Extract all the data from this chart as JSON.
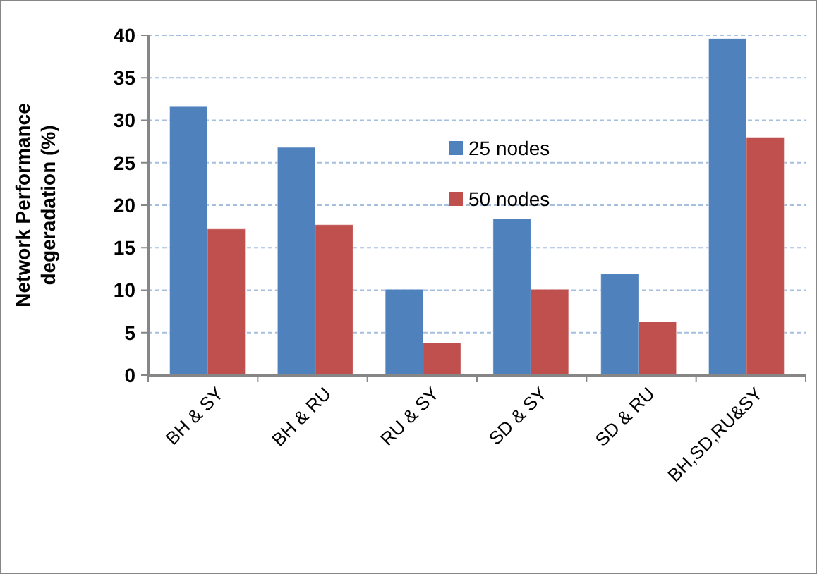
{
  "chart_data": {
    "type": "bar",
    "ylabel": "Network Performance degeradation (%)",
    "categories": [
      "BH & SY",
      "BH & RU",
      "RU & SY",
      "SD & SY",
      "SD & RU",
      "BH,SD,RU&SY"
    ],
    "series": [
      {
        "name": "25 nodes",
        "color": "#4f81bd",
        "values": [
          31.6,
          26.8,
          10.1,
          18.4,
          11.9,
          39.6
        ]
      },
      {
        "name": "50 nodes",
        "color": "#c0504d",
        "values": [
          17.2,
          17.7,
          3.8,
          10.1,
          6.3,
          28.0
        ]
      }
    ],
    "ylim": [
      0,
      40
    ],
    "yticks": [
      0,
      5,
      10,
      15,
      20,
      25,
      30,
      35,
      40
    ],
    "grid": "y",
    "legend": "top"
  }
}
